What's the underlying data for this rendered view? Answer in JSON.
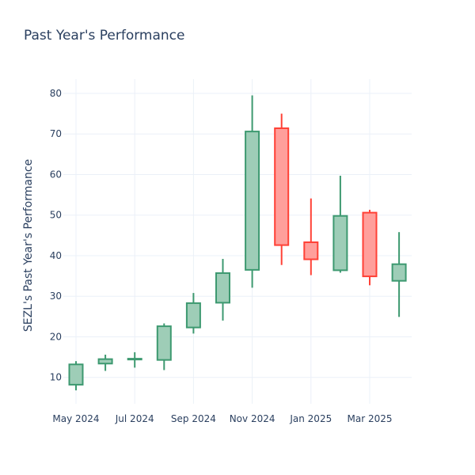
{
  "chart_data": {
    "type": "candlestick",
    "title": "Past Year's Performance",
    "xlabel": "",
    "ylabel": "SEZL's Past Year's Performance",
    "ylim": [
      3.5,
      83.5
    ],
    "yticks": [
      10,
      20,
      30,
      40,
      50,
      60,
      70,
      80
    ],
    "xticks": [
      {
        "label": "May 2024",
        "month": 0
      },
      {
        "label": "Jul 2024",
        "month": 2
      },
      {
        "label": "Sep 2024",
        "month": 4
      },
      {
        "label": "Nov 2024",
        "month": 6
      },
      {
        "label": "Jan 2025",
        "month": 8
      },
      {
        "label": "Mar 2025",
        "month": 10
      }
    ],
    "grid": true,
    "colors": {
      "increasing": "#3d9970",
      "increasing_fill": "#9ecdb7",
      "decreasing": "#ff4136",
      "decreasing_fill": "#ff9f9b"
    },
    "candles": [
      {
        "month": "2024-05",
        "open": 8.2,
        "high": 14.0,
        "low": 6.8,
        "close": 13.2
      },
      {
        "month": "2024-06",
        "open": 13.4,
        "high": 15.6,
        "low": 11.6,
        "close": 14.5
      },
      {
        "month": "2024-07",
        "open": 14.4,
        "high": 16.2,
        "low": 12.4,
        "close": 14.6
      },
      {
        "month": "2024-08",
        "open": 14.3,
        "high": 23.3,
        "low": 11.8,
        "close": 22.6
      },
      {
        "month": "2024-09",
        "open": 22.3,
        "high": 30.8,
        "low": 20.8,
        "close": 28.3
      },
      {
        "month": "2024-10",
        "open": 28.4,
        "high": 39.2,
        "low": 24.0,
        "close": 35.7
      },
      {
        "month": "2024-11",
        "open": 36.5,
        "high": 79.5,
        "low": 32.1,
        "close": 70.6
      },
      {
        "month": "2024-12",
        "open": 71.4,
        "high": 75.0,
        "low": 37.7,
        "close": 42.6
      },
      {
        "month": "2025-01",
        "open": 43.3,
        "high": 54.1,
        "low": 35.2,
        "close": 39.1
      },
      {
        "month": "2025-02",
        "open": 36.4,
        "high": 59.7,
        "low": 35.8,
        "close": 49.8
      },
      {
        "month": "2025-03",
        "open": 50.6,
        "high": 51.3,
        "low": 32.7,
        "close": 34.9
      },
      {
        "month": "2025-04",
        "open": 33.8,
        "high": 45.8,
        "low": 24.9,
        "close": 37.9
      }
    ]
  }
}
